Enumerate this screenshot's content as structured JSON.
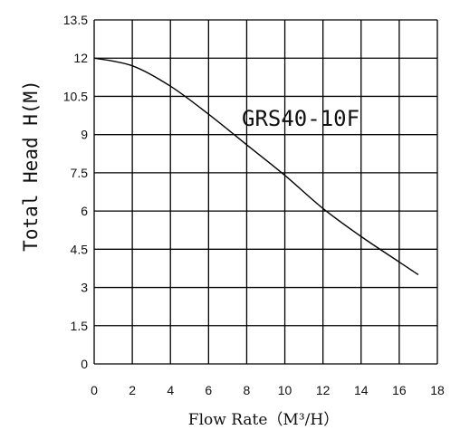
{
  "chart_data": {
    "type": "line",
    "xlabel": "Flow Rate（M³/H）",
    "ylabel": "Total Head H(M)",
    "xlim": [
      0,
      18
    ],
    "ylim": [
      0,
      13.5
    ],
    "x_ticks": [
      "0",
      "2",
      "4",
      "6",
      "8",
      "10",
      "12",
      "14",
      "16",
      "18"
    ],
    "y_ticks": [
      "0",
      "1.5",
      "3",
      "4.5",
      "6",
      "7.5",
      "9",
      "10.5",
      "12",
      "13.5"
    ],
    "grid": true,
    "series": [
      {
        "name": "GRS40-10F",
        "x": [
          0,
          2,
          4,
          6,
          8,
          10,
          12,
          14,
          16,
          17
        ],
        "y": [
          12.0,
          11.7,
          10.9,
          9.8,
          8.6,
          7.4,
          6.1,
          5.0,
          4.0,
          3.5
        ]
      }
    ]
  }
}
